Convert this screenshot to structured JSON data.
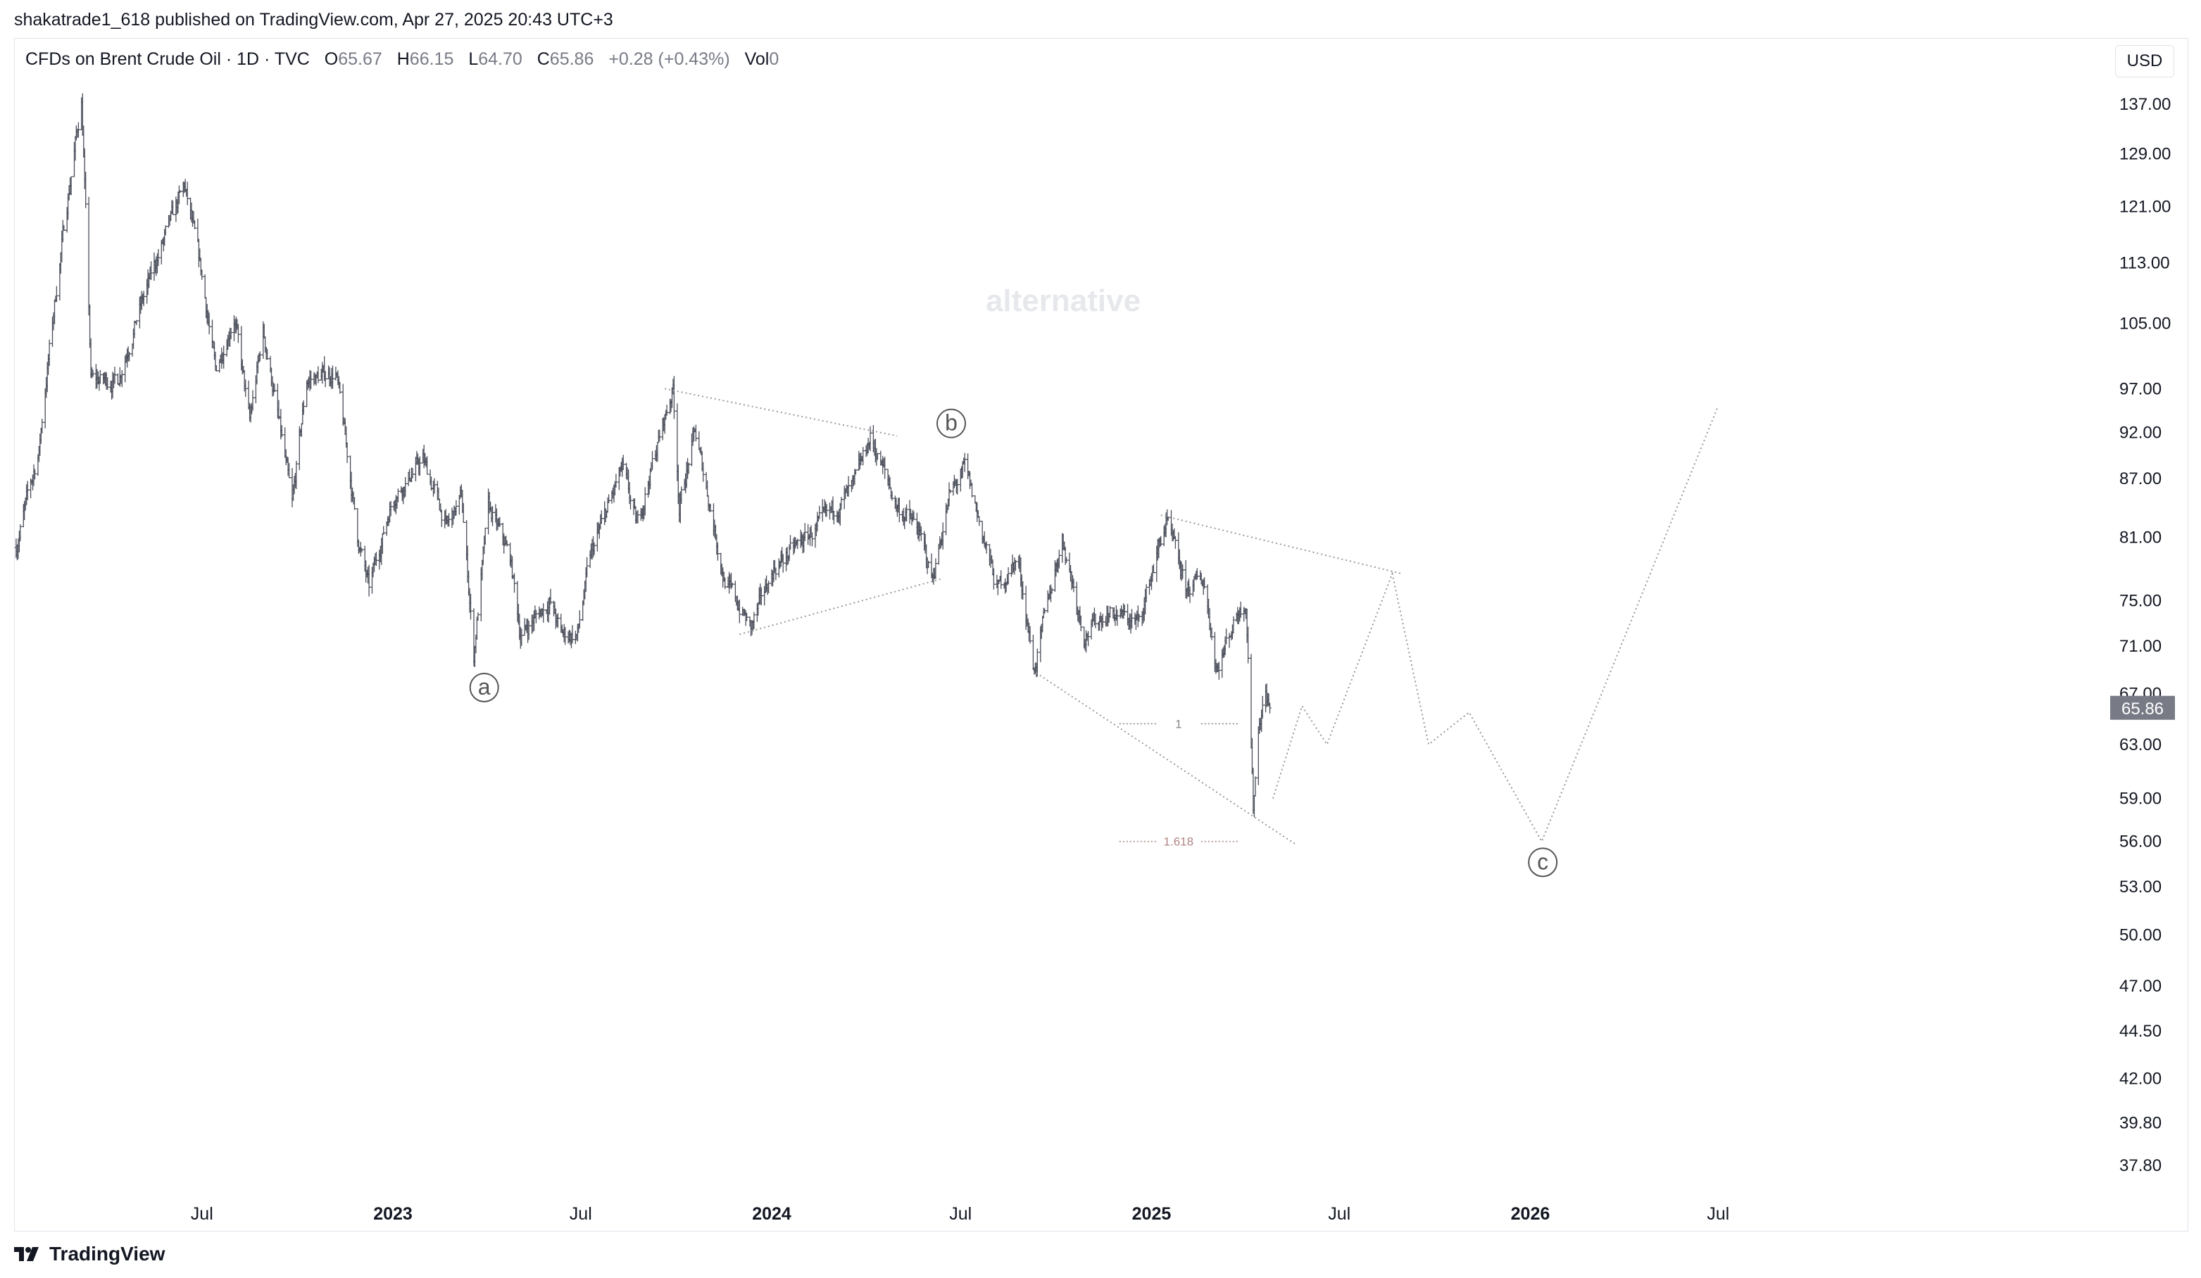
{
  "header": {
    "published": "shakatrade1_618 published on TradingView.com, Apr 27, 2025 20:43 UTC+3"
  },
  "legend": {
    "symbol": "CFDs on Brent Crude Oil · 1D · TVC",
    "o_label": "O",
    "o_value": "65.67",
    "h_label": "H",
    "h_value": "66.15",
    "l_label": "L",
    "l_value": "64.70",
    "c_label": "C",
    "c_value": "65.86",
    "change": "+0.28 (+0.43%)",
    "vol_label": "Vol",
    "vol_value": "0"
  },
  "currency": "USD",
  "footer": {
    "brand": "TradingView"
  },
  "chart_data": {
    "type": "candlestick",
    "watermark": "alternative",
    "y_axis": {
      "scale": "log",
      "ticks": [
        "137.00",
        "129.00",
        "121.00",
        "113.00",
        "105.00",
        "97.00",
        "92.00",
        "87.00",
        "81.00",
        "75.00",
        "71.00",
        "67.00",
        "63.00",
        "59.00",
        "56.00",
        "53.00",
        "50.00",
        "47.00",
        "44.50",
        "42.00",
        "39.80",
        "37.80"
      ],
      "range": [
        36.5,
        145
      ]
    },
    "x_axis": {
      "ticks": [
        {
          "label": "Jul",
          "date": "2022-07-01",
          "bold": false
        },
        {
          "label": "2023",
          "date": "2023-01-01",
          "bold": true
        },
        {
          "label": "Jul",
          "date": "2023-07-01",
          "bold": false
        },
        {
          "label": "2024",
          "date": "2024-01-01",
          "bold": true
        },
        {
          "label": "Jul",
          "date": "2024-07-01",
          "bold": false
        },
        {
          "label": "2025",
          "date": "2025-01-01",
          "bold": true
        },
        {
          "label": "Jul",
          "date": "2025-07-01",
          "bold": false
        },
        {
          "label": "2026",
          "date": "2026-01-01",
          "bold": true
        },
        {
          "label": "Jul",
          "date": "2026-07-01",
          "bold": false
        }
      ]
    },
    "last_price": {
      "value": 65.86,
      "label": "65.86",
      "color": "#787b86"
    },
    "price_path": [
      [
        "2022-01-03",
        80
      ],
      [
        "2022-01-25",
        90
      ],
      [
        "2022-03-07",
        137.5
      ],
      [
        "2022-03-16",
        98
      ],
      [
        "2022-04-11",
        98
      ],
      [
        "2022-05-05",
        108
      ],
      [
        "2022-06-14",
        124
      ],
      [
        "2022-06-30",
        112
      ],
      [
        "2022-07-14",
        99
      ],
      [
        "2022-08-01",
        106
      ],
      [
        "2022-08-16",
        93
      ],
      [
        "2022-08-29",
        104
      ],
      [
        "2022-09-26",
        84
      ],
      [
        "2022-10-10",
        98
      ],
      [
        "2022-11-07",
        99
      ],
      [
        "2022-11-28",
        81
      ],
      [
        "2022-12-09",
        76
      ],
      [
        "2023-01-01",
        85
      ],
      [
        "2023-01-30",
        89
      ],
      [
        "2023-02-22",
        82
      ],
      [
        "2023-03-08",
        85
      ],
      [
        "2023-03-20",
        70.1
      ],
      [
        "2023-04-03",
        84
      ],
      [
        "2023-04-24",
        79
      ],
      [
        "2023-05-04",
        71.9
      ],
      [
        "2023-06-01",
        75
      ],
      [
        "2023-06-12",
        72
      ],
      [
        "2023-06-28",
        72
      ],
      [
        "2023-07-10",
        79
      ],
      [
        "2023-08-10",
        88
      ],
      [
        "2023-08-24",
        82
      ],
      [
        "2023-09-28",
        97.1
      ],
      [
        "2023-10-04",
        84
      ],
      [
        "2023-10-19",
        92
      ],
      [
        "2023-11-16",
        77
      ],
      [
        "2023-12-12",
        72.5
      ],
      [
        "2024-01-03",
        78
      ],
      [
        "2024-01-24",
        80
      ],
      [
        "2024-02-15",
        82
      ],
      [
        "2024-03-20",
        86
      ],
      [
        "2024-04-05",
        91.5
      ],
      [
        "2024-05-01",
        84
      ],
      [
        "2024-05-20",
        82
      ],
      [
        "2024-06-04",
        77
      ],
      [
        "2024-06-20",
        85
      ],
      [
        "2024-07-05",
        88
      ],
      [
        "2024-08-05",
        76
      ],
      [
        "2024-08-25",
        79
      ],
      [
        "2024-09-10",
        68.9
      ],
      [
        "2024-10-07",
        81
      ],
      [
        "2024-10-28",
        72
      ],
      [
        "2024-11-20",
        74
      ],
      [
        "2024-12-20",
        73
      ],
      [
        "2025-01-15",
        82.6
      ],
      [
        "2025-02-03",
        76
      ],
      [
        "2025-02-20",
        77
      ],
      [
        "2025-03-05",
        69
      ],
      [
        "2025-03-25",
        74
      ],
      [
        "2025-04-02",
        75
      ],
      [
        "2025-04-09",
        58.4
      ],
      [
        "2025-04-15",
        65
      ],
      [
        "2025-04-21",
        67
      ],
      [
        "2025-04-25",
        65.86
      ]
    ],
    "projection": {
      "points": [
        [
          "2025-04-28",
          59
        ],
        [
          "2025-05-26",
          66
        ],
        [
          "2025-06-19",
          63
        ],
        [
          "2025-08-21",
          77.5
        ],
        [
          "2025-09-25",
          63
        ],
        [
          "2025-11-03",
          65.5
        ],
        [
          "2026-01-12",
          56
        ],
        [
          "2026-07-01",
          95
        ]
      ],
      "style": "dotted",
      "color": "#999999"
    },
    "trendlines": [
      {
        "from": [
          "2023-09-20",
          97.0
        ],
        "to": [
          "2024-05-01",
          91.6
        ]
      },
      {
        "from": [
          "2023-12-01",
          72.0
        ],
        "to": [
          "2024-06-12",
          77.0
        ]
      },
      {
        "from": [
          "2025-01-10",
          83.2
        ],
        "to": [
          "2025-08-30",
          77.5
        ]
      },
      {
        "from": [
          "2024-09-12",
          68.7
        ],
        "to": [
          "2025-05-20",
          55.8
        ]
      }
    ],
    "fib_levels": [
      {
        "label": "1",
        "value": 64.6,
        "from": "2024-12-01",
        "to": "2025-03-25",
        "color": "#888888"
      },
      {
        "label": "1.618",
        "value": 56.0,
        "from": "2024-12-01",
        "to": "2025-03-25",
        "color": "#b08585"
      }
    ],
    "wave_labels": [
      {
        "label": "a",
        "date": "2023-03-30",
        "value": 67.5
      },
      {
        "label": "b",
        "date": "2024-06-22",
        "value": 93.0
      },
      {
        "label": "c",
        "date": "2026-01-13",
        "value": 54.6
      }
    ]
  }
}
